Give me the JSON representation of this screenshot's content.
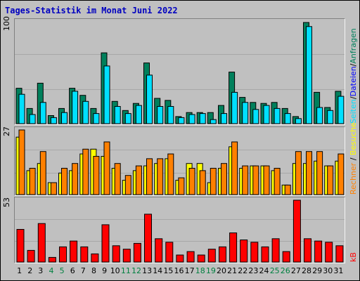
{
  "title": "Tages-Statistik im Monat Juni 2022",
  "labels": {
    "anfragen": "Anfragen",
    "dateien": "Dateien",
    "seiten": "Seiten",
    "besuche": "Besuche",
    "rechner": "Rechner",
    "kb": "kB",
    "sep": "/"
  },
  "colors": {
    "anfragen": "#00805c",
    "dateien": "#0000ff",
    "seiten": "#00e0ff",
    "besuche": "#ffff00",
    "rechner": "#ff8000",
    "kb": "#ff0000",
    "weekend": "#008040",
    "weekday": "#000000"
  },
  "chart_data": [
    {
      "type": "bar",
      "title": "",
      "ylim": [
        0,
        100
      ],
      "ytick_label": "100",
      "categories": [
        "1",
        "2",
        "3",
        "4",
        "5",
        "6",
        "7",
        "8",
        "9",
        "10",
        "11",
        "12",
        "13",
        "14",
        "15",
        "16",
        "17",
        "18",
        "19",
        "20",
        "21",
        "22",
        "23",
        "24",
        "25",
        "26",
        "27",
        "28",
        "29",
        "30",
        "31"
      ],
      "weekend_days": [
        4,
        5,
        11,
        12,
        18,
        19,
        25,
        26
      ],
      "series": [
        {
          "name": "Anfragen",
          "values": [
            35,
            15,
            40,
            8,
            15,
            35,
            28,
            15,
            70,
            22,
            13,
            20,
            60,
            25,
            23,
            7,
            11,
            11,
            11,
            18,
            51,
            26,
            21,
            20,
            21,
            15,
            7,
            100,
            31,
            16,
            32
          ]
        },
        {
          "name": "Dateien",
          "values": [
            null,
            null,
            null,
            null,
            null,
            null,
            null,
            null,
            null,
            null,
            null,
            null,
            null,
            null,
            null,
            null,
            null,
            null,
            null,
            null,
            null,
            null,
            null,
            null,
            null,
            null,
            null,
            null,
            null,
            null,
            null
          ]
        },
        {
          "name": "Seiten",
          "values": [
            29,
            9,
            21,
            6,
            11,
            32,
            22,
            10,
            57,
            17,
            10,
            18,
            48,
            17,
            17,
            6,
            9,
            10,
            4,
            10,
            31,
            21,
            14,
            18,
            15,
            10,
            5,
            96,
            16,
            13,
            27
          ]
        }
      ]
    },
    {
      "type": "bar",
      "title": "",
      "ylim": [
        0,
        27
      ],
      "ytick_label": "27",
      "categories": [
        "1",
        "2",
        "3",
        "4",
        "5",
        "6",
        "7",
        "8",
        "9",
        "10",
        "11",
        "12",
        "13",
        "14",
        "15",
        "16",
        "17",
        "18",
        "19",
        "20",
        "21",
        "22",
        "23",
        "24",
        "25",
        "26",
        "27",
        "28",
        "29",
        "30",
        "31"
      ],
      "series": [
        {
          "name": "Besuche",
          "values": [
            24,
            10,
            13,
            5,
            9,
            10,
            17,
            19,
            16,
            11,
            6,
            10,
            12,
            13,
            15,
            6,
            13,
            13,
            5,
            11,
            20,
            11,
            12,
            12,
            10,
            4,
            13,
            13,
            14,
            12,
            14
          ]
        },
        {
          "name": "Rechner",
          "values": [
            27,
            11,
            18,
            5,
            11,
            13,
            19,
            16,
            22,
            13,
            8,
            12,
            15,
            15,
            17,
            7,
            11,
            10,
            11,
            13,
            22,
            12,
            12,
            12,
            11,
            4,
            18,
            18,
            18,
            12,
            17
          ]
        }
      ]
    },
    {
      "type": "bar",
      "title": "",
      "ylim": [
        0,
        53
      ],
      "ytick_label": "53",
      "categories": [
        "1",
        "2",
        "3",
        "4",
        "5",
        "6",
        "7",
        "8",
        "9",
        "10",
        "11",
        "12",
        "13",
        "14",
        "15",
        "16",
        "17",
        "18",
        "19",
        "20",
        "21",
        "22",
        "23",
        "24",
        "25",
        "26",
        "27",
        "28",
        "29",
        "30",
        "31"
      ],
      "series": [
        {
          "name": "kB",
          "values": [
            28,
            10,
            33,
            4,
            13,
            18,
            13,
            7,
            32,
            14,
            11,
            16,
            41,
            20,
            17,
            6,
            9,
            6,
            11,
            13,
            25,
            19,
            17,
            13,
            20,
            9,
            53,
            20,
            18,
            17,
            14
          ]
        }
      ]
    }
  ]
}
